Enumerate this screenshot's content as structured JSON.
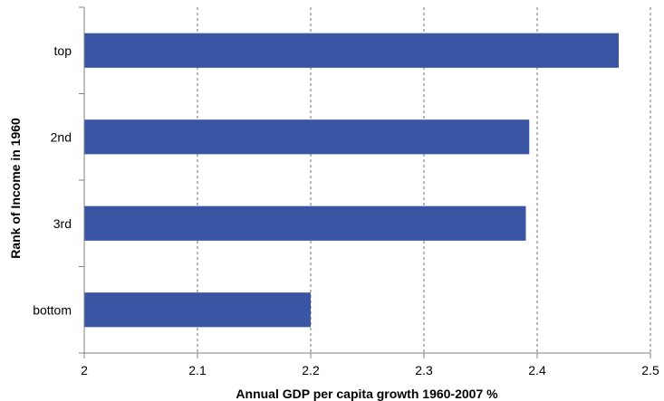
{
  "chart_data": {
    "type": "bar",
    "orientation": "horizontal",
    "categories": [
      "top",
      "2nd",
      "3rd",
      "bottom"
    ],
    "values": [
      2.472,
      2.393,
      2.39,
      2.2
    ],
    "xlabel": "Annual GDP per capita growth 1960-2007 %",
    "ylabel": "Rank of Income in 1960",
    "xlim": [
      2,
      2.5
    ],
    "x_ticks": [
      "2",
      "2.1",
      "2.2",
      "2.3",
      "2.4",
      "2.5"
    ],
    "grid": "vertical dashed",
    "legend": "none",
    "bar_color": "#3a55a3"
  }
}
